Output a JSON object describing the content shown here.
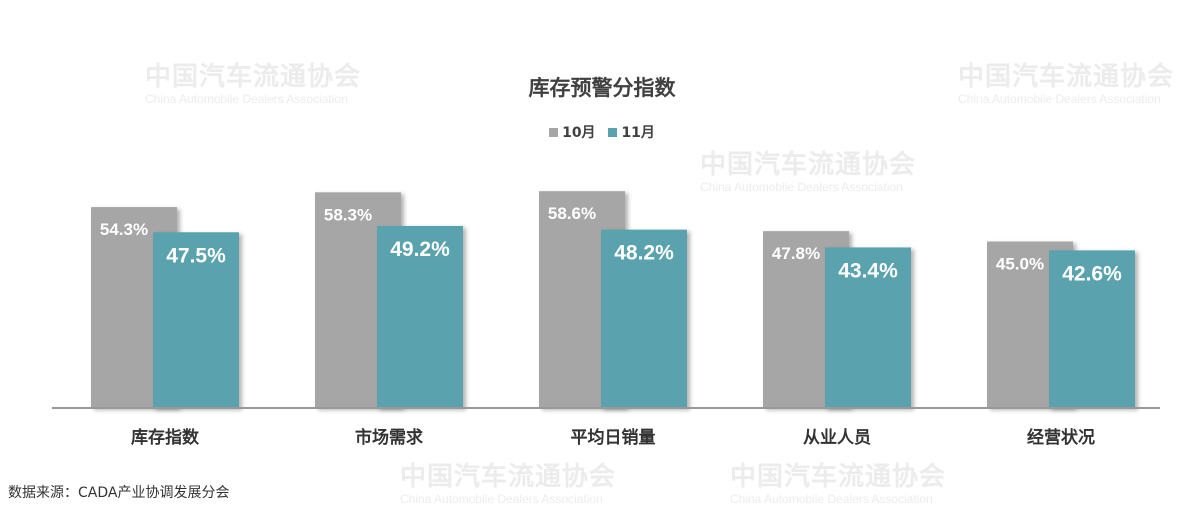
{
  "watermark": {
    "cn": "中国汽车流通协会",
    "en": "China Automobile Dealers Association",
    "logo_text": "CADA"
  },
  "source": "数据来源：CADA产业协调发展分会",
  "chart_data": {
    "type": "bar",
    "title": "库存预警分指数",
    "categories": [
      "库存指数",
      "市场需求",
      "平均日销量",
      "从业人员",
      "经营状况"
    ],
    "series": [
      {
        "name": "10月",
        "color": "#a6a6a6",
        "values": [
          54.3,
          58.3,
          58.6,
          47.8,
          45.0
        ],
        "labels": [
          "54.3%",
          "58.3%",
          "58.6%",
          "47.8%",
          "45.0%"
        ]
      },
      {
        "name": "11月",
        "color": "#5aa2ae",
        "values": [
          47.5,
          49.2,
          48.2,
          43.4,
          42.6
        ],
        "labels": [
          "47.5%",
          "49.2%",
          "48.2%",
          "43.4%",
          "42.6%"
        ]
      }
    ],
    "legend": "top",
    "grid": false,
    "ylim": [
      0,
      60
    ],
    "unit": "%"
  }
}
